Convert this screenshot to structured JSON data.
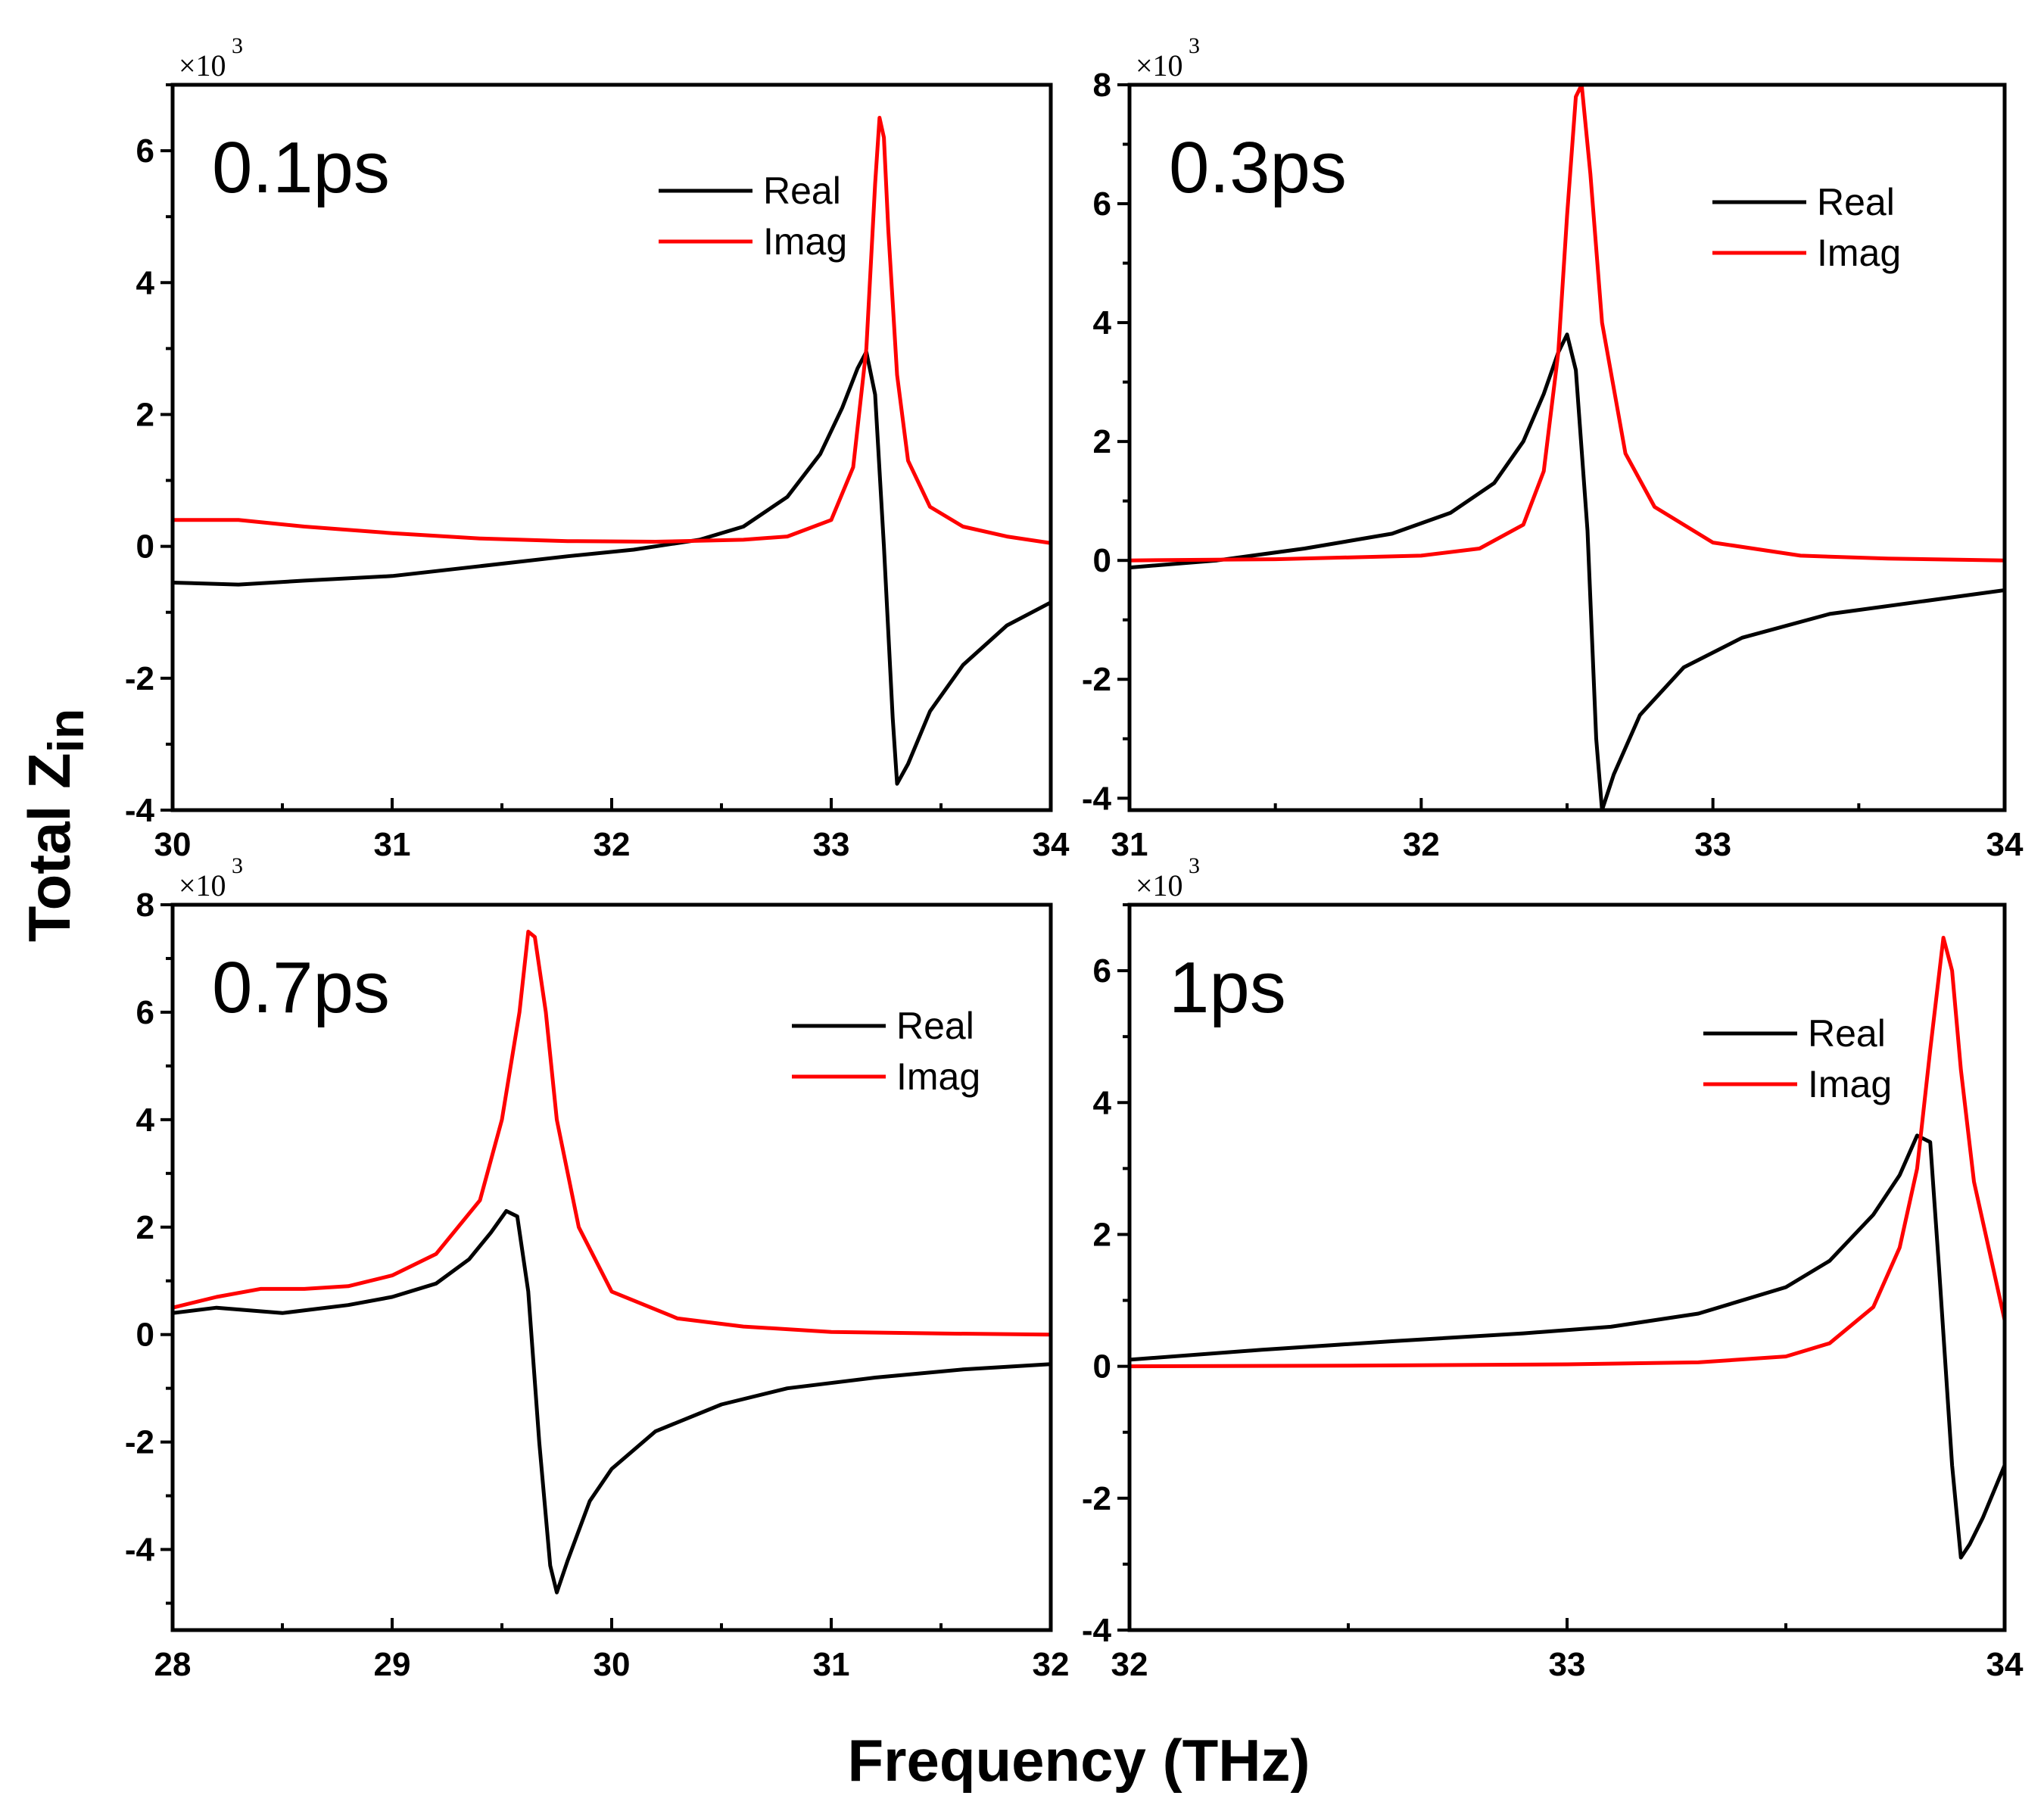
{
  "figure": {
    "xlabel": "Frequency (THz)",
    "ylabel_main": "Total Z",
    "ylabel_sub": "in",
    "multiplier_base": "×10",
    "multiplier_exp": "3",
    "colors": {
      "real": "#000000",
      "imag": "#ff0000",
      "axis": "#000000"
    }
  },
  "chart_data": [
    {
      "type": "line",
      "panel_label": "0.1ps",
      "xlim": [
        30,
        34
      ],
      "ylim": [
        -4,
        7
      ],
      "xticks": [
        "30",
        "31",
        "32",
        "33",
        "34"
      ],
      "xtick_values": [
        30,
        31,
        32,
        33,
        34
      ],
      "yticks": [
        "-4",
        "-2",
        "0",
        "2",
        "4",
        "6"
      ],
      "ytick_values": [
        -4,
        -2,
        0,
        2,
        4,
        6
      ],
      "legend": [
        "Real",
        "Imag"
      ],
      "series": [
        {
          "name": "Real",
          "x": [
            30,
            30.3,
            30.6,
            31,
            31.4,
            31.8,
            32.1,
            32.4,
            32.6,
            32.8,
            32.95,
            33.05,
            33.12,
            33.16,
            33.2,
            33.24,
            33.28,
            33.3,
            33.35,
            33.45,
            33.6,
            33.8,
            34
          ],
          "y": [
            -0.55,
            -0.58,
            -0.52,
            -0.45,
            -0.3,
            -0.15,
            -0.05,
            0.1,
            0.3,
            0.75,
            1.4,
            2.1,
            2.7,
            2.95,
            2.3,
            0.0,
            -2.6,
            -3.6,
            -3.3,
            -2.5,
            -1.8,
            -1.2,
            -0.85
          ]
        },
        {
          "name": "Imag",
          "x": [
            30,
            30.3,
            30.6,
            31,
            31.4,
            31.8,
            32.2,
            32.6,
            32.8,
            33,
            33.1,
            33.16,
            33.2,
            33.22,
            33.24,
            33.26,
            33.3,
            33.35,
            33.45,
            33.6,
            33.8,
            34
          ],
          "y": [
            0.4,
            0.4,
            0.3,
            0.2,
            0.12,
            0.08,
            0.07,
            0.1,
            0.15,
            0.4,
            1.2,
            3.0,
            5.5,
            6.5,
            6.2,
            4.8,
            2.6,
            1.3,
            0.6,
            0.3,
            0.15,
            0.05
          ]
        }
      ]
    },
    {
      "type": "line",
      "panel_label": "0.3ps",
      "xlim": [
        31,
        34
      ],
      "ylim": [
        -4.2,
        8
      ],
      "xticks": [
        "31",
        "32",
        "33",
        "34"
      ],
      "xtick_values": [
        31,
        32,
        33,
        34
      ],
      "yticks": [
        "-4",
        "-2",
        "0",
        "2",
        "4",
        "6",
        "8"
      ],
      "ytick_values": [
        -4,
        -2,
        0,
        2,
        4,
        6,
        8
      ],
      "legend": [
        "Real",
        "Imag"
      ],
      "series": [
        {
          "name": "Real",
          "x": [
            31,
            31.3,
            31.6,
            31.9,
            32.1,
            32.25,
            32.35,
            32.42,
            32.47,
            32.5,
            32.53,
            32.57,
            32.6,
            32.62,
            32.66,
            32.75,
            32.9,
            33.1,
            33.4,
            33.7,
            34
          ],
          "y": [
            -0.12,
            0.0,
            0.2,
            0.45,
            0.8,
            1.3,
            2.0,
            2.8,
            3.5,
            3.8,
            3.2,
            0.5,
            -3.0,
            -4.2,
            -3.6,
            -2.6,
            -1.8,
            -1.3,
            -0.9,
            -0.7,
            -0.5
          ]
        },
        {
          "name": "Imag",
          "x": [
            31,
            31.5,
            32,
            32.2,
            32.35,
            32.42,
            32.47,
            32.5,
            32.53,
            32.55,
            32.58,
            32.62,
            32.7,
            32.8,
            33,
            33.3,
            33.6,
            34
          ],
          "y": [
            0.0,
            0.02,
            0.08,
            0.2,
            0.6,
            1.5,
            3.5,
            5.8,
            7.8,
            8.0,
            6.5,
            4.0,
            1.8,
            0.9,
            0.3,
            0.08,
            0.03,
            0.0
          ]
        }
      ]
    },
    {
      "type": "line",
      "panel_label": "0.7ps",
      "xlim": [
        28,
        32
      ],
      "ylim": [
        -5.5,
        8
      ],
      "xticks": [
        "28",
        "29",
        "30",
        "31",
        "32"
      ],
      "xtick_values": [
        28,
        29,
        30,
        31,
        32
      ],
      "yticks": [
        "-4",
        "-2",
        "0",
        "2",
        "4",
        "6",
        "8"
      ],
      "ytick_values": [
        -4,
        -2,
        0,
        2,
        4,
        6,
        8
      ],
      "legend": [
        "Real",
        "Imag"
      ],
      "series": [
        {
          "name": "Real",
          "x": [
            28,
            28.2,
            28.5,
            28.8,
            29,
            29.2,
            29.35,
            29.45,
            29.52,
            29.57,
            29.62,
            29.67,
            29.72,
            29.75,
            29.8,
            29.9,
            30,
            30.2,
            30.5,
            30.8,
            31.2,
            31.6,
            32
          ],
          "y": [
            0.4,
            0.5,
            0.4,
            0.55,
            0.7,
            0.95,
            1.4,
            1.9,
            2.3,
            2.2,
            0.8,
            -2.0,
            -4.3,
            -4.8,
            -4.2,
            -3.1,
            -2.5,
            -1.8,
            -1.3,
            -1.0,
            -0.8,
            -0.65,
            -0.55
          ]
        },
        {
          "name": "Imag",
          "x": [
            28,
            28.2,
            28.4,
            28.6,
            28.8,
            29,
            29.2,
            29.4,
            29.5,
            29.58,
            29.62,
            29.65,
            29.7,
            29.75,
            29.85,
            30,
            30.3,
            30.6,
            31,
            31.5,
            32
          ],
          "y": [
            0.5,
            0.7,
            0.85,
            0.85,
            0.9,
            1.1,
            1.5,
            2.5,
            4.0,
            6.0,
            7.5,
            7.4,
            6.0,
            4.0,
            2.0,
            0.8,
            0.3,
            0.15,
            0.05,
            0.02,
            0.0
          ]
        }
      ]
    },
    {
      "type": "line",
      "panel_label": "1ps",
      "xlim": [
        32,
        34
      ],
      "ylim": [
        -4,
        7
      ],
      "xticks": [
        "32",
        "33",
        "34"
      ],
      "xtick_values": [
        32,
        33,
        34
      ],
      "yticks": [
        "-4",
        "-2",
        "0",
        "2",
        "4",
        "6"
      ],
      "ytick_values": [
        -4,
        -2,
        0,
        2,
        4,
        6
      ],
      "legend": [
        "Real",
        "Imag"
      ],
      "series": [
        {
          "name": "Real",
          "x": [
            32,
            32.3,
            32.6,
            32.9,
            33.1,
            33.3,
            33.5,
            33.6,
            33.7,
            33.76,
            33.8,
            33.83,
            33.85,
            33.88,
            33.9,
            33.92,
            33.95,
            34
          ],
          "y": [
            0.1,
            0.25,
            0.38,
            0.5,
            0.6,
            0.8,
            1.2,
            1.6,
            2.3,
            2.9,
            3.5,
            3.4,
            1.5,
            -1.5,
            -2.9,
            -2.7,
            -2.3,
            -1.5
          ]
        },
        {
          "name": "Imag",
          "x": [
            32,
            32.5,
            33,
            33.3,
            33.5,
            33.6,
            33.7,
            33.76,
            33.8,
            33.83,
            33.86,
            33.88,
            33.9,
            33.93,
            33.97,
            34
          ],
          "y": [
            0.0,
            0.01,
            0.03,
            0.06,
            0.15,
            0.35,
            0.9,
            1.8,
            3.0,
            4.8,
            6.5,
            6.0,
            4.5,
            2.8,
            1.6,
            0.7
          ]
        }
      ]
    }
  ]
}
